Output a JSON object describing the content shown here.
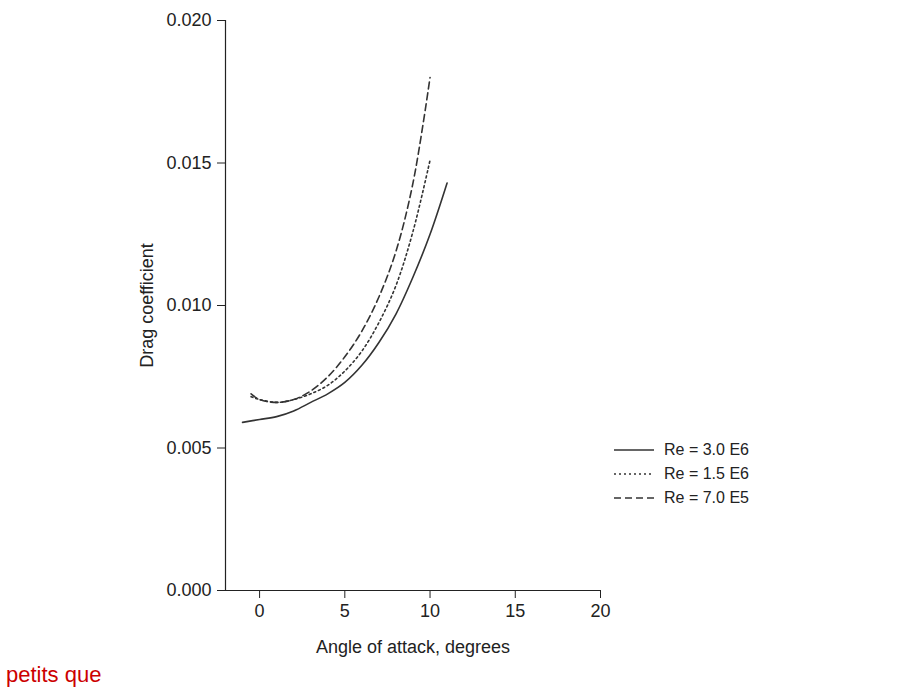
{
  "chart_data": {
    "type": "line",
    "x_label": "Angle of attack, degrees",
    "y_label": "Drag coefficient",
    "xlim": [
      -2,
      20
    ],
    "xticks": [
      0,
      5,
      10,
      15,
      20
    ],
    "ylim": [
      0,
      0.02
    ],
    "yticks": [
      {
        "value": 0,
        "label": "0.000"
      },
      {
        "value": 0.005,
        "label": "0.005"
      },
      {
        "value": 0.01,
        "label": "0.010"
      },
      {
        "value": 0.015,
        "label": "0.015"
      },
      {
        "value": 0.02,
        "label": "0.020"
      }
    ],
    "grid": false,
    "legend": "right",
    "annotations": [
      {
        "text": "petits que",
        "color": "#cc0000"
      }
    ],
    "series": [
      {
        "name": "Re = 3.0 E6",
        "color": "#333333",
        "line_style": "solid",
        "x": [
          -1,
          0,
          1,
          2,
          3,
          4,
          5,
          6,
          7,
          8,
          9,
          10,
          11
        ],
        "values": [
          0.0059,
          0.006,
          0.0061,
          0.0063,
          0.0066,
          0.0069,
          0.0073,
          0.0079,
          0.0087,
          0.0097,
          0.011,
          0.0125,
          0.0143
        ]
      },
      {
        "name": "Re = 1.5 E6",
        "color": "#333333",
        "line_style": "dotted",
        "x": [
          -0.5,
          0,
          1,
          2,
          3,
          4,
          5,
          6,
          7,
          8,
          9,
          10
        ],
        "values": [
          0.0068,
          0.0067,
          0.0066,
          0.0067,
          0.0069,
          0.0072,
          0.0077,
          0.0084,
          0.0094,
          0.0107,
          0.0126,
          0.0151
        ]
      },
      {
        "name": "Re = 7.0 E5",
        "color": "#333333",
        "line_style": "dashed",
        "x": [
          -0.5,
          0,
          1,
          2,
          3,
          4,
          5,
          6,
          7,
          8,
          9,
          10
        ],
        "values": [
          0.0069,
          0.0067,
          0.0066,
          0.0067,
          0.007,
          0.0075,
          0.0082,
          0.0091,
          0.0103,
          0.0119,
          0.0143,
          0.018
        ]
      }
    ]
  }
}
